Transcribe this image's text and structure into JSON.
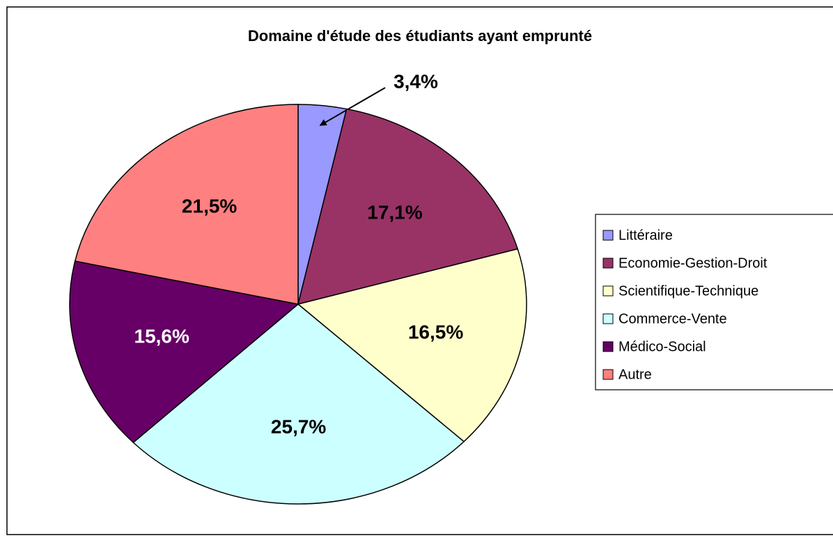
{
  "chart_data": {
    "type": "pie",
    "title": "Domaine d'étude des étudiants ayant emprunté",
    "categories": [
      "Littéraire",
      "Economie-Gestion-Droit",
      "Scientifique-Technique",
      "Commerce-Vente",
      "Médico-Social",
      "Autre"
    ],
    "values": [
      3.4,
      17.1,
      16.5,
      25.7,
      15.6,
      21.5
    ],
    "value_labels": [
      "3,4%",
      "17,1%",
      "16,5%",
      "25,7%",
      "15,6%",
      "21,5%"
    ],
    "colors": [
      "#9999ff",
      "#993366",
      "#ffffcc",
      "#ccffff",
      "#660066",
      "#ff8080"
    ],
    "legend": "right"
  }
}
